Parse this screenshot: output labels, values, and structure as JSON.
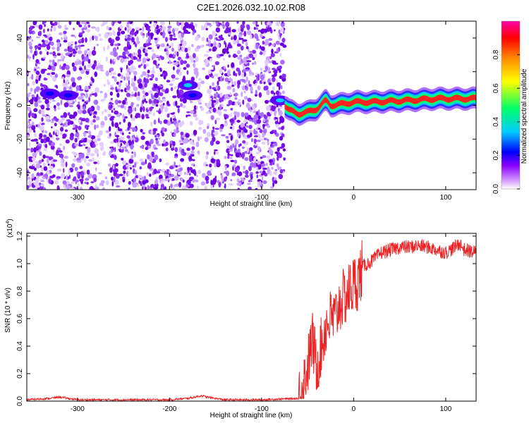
{
  "figure": {
    "title": "C2E1.2026.032.10.02.R08"
  },
  "chart_data": [
    {
      "type": "heatmap",
      "title": "C2E1.2026.032.10.02.R08",
      "xlabel": "Height of straight line (km)",
      "ylabel": "Frequency (Hz)",
      "xlim": [
        -355,
        133
      ],
      "ylim": [
        -50,
        50
      ],
      "xticks": [
        -300,
        -200,
        -100,
        0,
        100
      ],
      "xtick_labels": [
        "-300",
        "-200",
        "-100",
        "0",
        "100"
      ],
      "yticks": [
        -40,
        -20,
        0,
        20,
        40
      ],
      "ytick_labels": [
        "-40",
        "-20",
        "0",
        "20",
        "40"
      ],
      "colorbar": {
        "label": "Normalized spectral amplitude",
        "range": [
          0,
          1
        ],
        "ticks": [
          0.0,
          0.2,
          0.4,
          0.6,
          0.8
        ],
        "tick_labels": [
          "0.0",
          "0.2",
          "0.4",
          "0.6",
          "0.8"
        ],
        "colormap": [
          "#ffffff",
          "#8800ff",
          "#0000ff",
          "#00ccff",
          "#00ff66",
          "#ffff00",
          "#ff8800",
          "#ff0000",
          "#ff00aa"
        ]
      },
      "features": {
        "noise_region_x": [
          -355,
          -75
        ],
        "track_x": [
          -75,
          133
        ],
        "track_freq": [
          [
            -78,
            2
          ],
          [
            -70,
            -3
          ],
          [
            -60,
            -5
          ],
          [
            -50,
            -4
          ],
          [
            -40,
            -2
          ],
          [
            -30,
            3
          ],
          [
            -25,
            0
          ],
          [
            -10,
            1
          ],
          [
            0,
            2
          ],
          [
            20,
            2
          ],
          [
            60,
            3
          ],
          [
            90,
            4
          ],
          [
            133,
            4
          ]
        ],
        "hotspots": [
          [
            -330,
            7,
            0.35
          ],
          [
            -310,
            6,
            0.3
          ],
          [
            -180,
            12,
            0.4
          ],
          [
            -175,
            6,
            0.35
          ],
          [
            -80,
            3,
            0.4
          ]
        ]
      }
    },
    {
      "type": "line",
      "xlabel": "Height of straight line (km)",
      "ylabel": "SNR (10 * v/v)",
      "yscale_label": "(x10",
      "yscale_exp": "4",
      "xlim": [
        -355,
        133
      ],
      "ylim": [
        0,
        1.22
      ],
      "xticks": [
        -300,
        -200,
        -100,
        0,
        100
      ],
      "xtick_labels": [
        "-300",
        "-200",
        "-100",
        "0",
        "100"
      ],
      "yticks": [
        0.0,
        0.2,
        0.4,
        0.6,
        0.8,
        1.0,
        1.2
      ],
      "ytick_labels": [
        "0.0",
        "0.2",
        "0.4",
        "0.6",
        "0.8",
        "1.0",
        "1.2"
      ],
      "series": [
        {
          "name": "SNR",
          "color": "#ee2222",
          "x": [
            -355,
            -330,
            -320,
            -300,
            -250,
            -200,
            -180,
            -165,
            -160,
            -140,
            -100,
            -60,
            -55,
            -50,
            -45,
            -40,
            -35,
            -30,
            -25,
            -20,
            -15,
            -10,
            -5,
            0,
            5,
            10,
            20,
            30,
            40,
            50,
            60,
            70,
            80,
            90,
            100,
            110,
            115,
            120,
            133
          ],
          "y": [
            0.01,
            0.02,
            0.03,
            0.01,
            0.01,
            0.01,
            0.02,
            0.04,
            0.03,
            0.01,
            0.01,
            0.02,
            0.12,
            0.25,
            0.45,
            0.25,
            0.4,
            0.55,
            0.6,
            0.6,
            0.72,
            0.75,
            0.8,
            0.85,
            0.88,
            0.98,
            1.02,
            1.08,
            1.1,
            1.12,
            1.12,
            1.13,
            1.12,
            1.1,
            1.08,
            1.12,
            1.15,
            1.1,
            1.08
          ]
        }
      ]
    }
  ]
}
